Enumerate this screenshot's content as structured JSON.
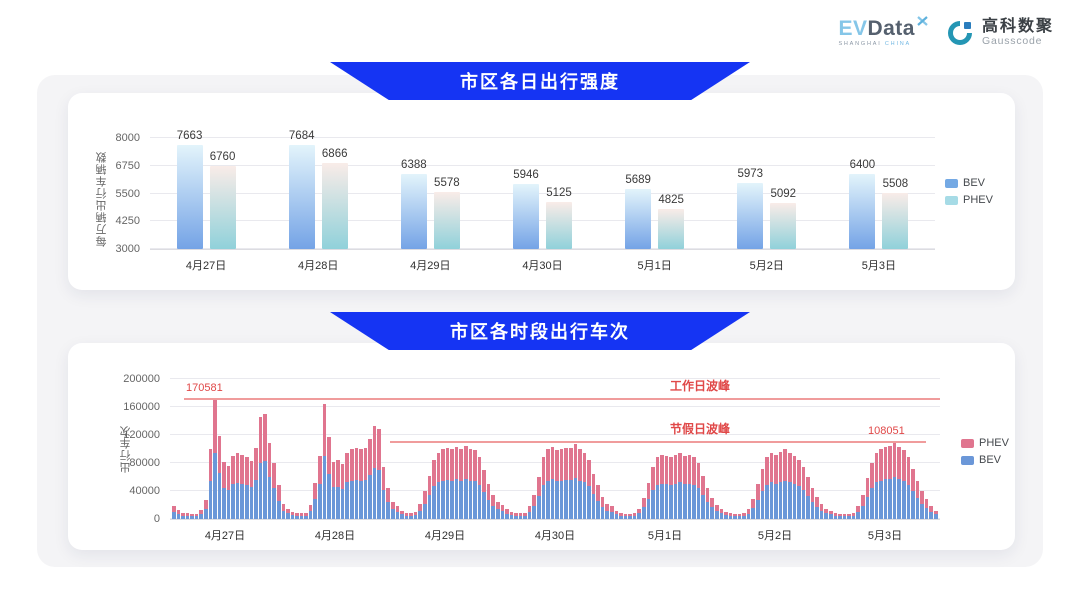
{
  "brand": {
    "evdata": {
      "ev": "EV",
      "data": "Data",
      "sub1": "SHANGHAI",
      "sub2": "CHINA"
    },
    "gausscode": {
      "cn": "高科数聚",
      "en": "Gausscode"
    }
  },
  "colors": {
    "banner_blue": "#1534f3",
    "annotation_red": "#e04848",
    "annotation_line": "#f09c9c",
    "grid": "#e9e9ee"
  },
  "chart_data": [
    {
      "type": "bar",
      "title": "市区各日出行强度",
      "ylabel": "每万辆出行车辆数",
      "categories": [
        "4月27日",
        "4月28日",
        "4月29日",
        "4月30日",
        "5月1日",
        "5月2日",
        "5月3日"
      ],
      "yticks": [
        3000,
        4250,
        5500,
        6750,
        8000
      ],
      "ylim": [
        3000,
        8000
      ],
      "grid": true,
      "legend_position": "right",
      "series": [
        {
          "name": "BEV",
          "legend_color": "#74a9e4",
          "gradient": [
            "#e3f4fb",
            "#74a3e6"
          ],
          "values": [
            7663,
            7684,
            6388,
            5946,
            5689,
            5973,
            6400
          ]
        },
        {
          "name": "PHEV",
          "legend_color": "#a6dbe6",
          "gradient": [
            "#f9ece8",
            "#90d1da"
          ],
          "values": [
            6760,
            6866,
            5578,
            5125,
            4825,
            5092,
            5508
          ]
        }
      ]
    },
    {
      "type": "bar",
      "stacked": true,
      "title": "市区各时段出行车次",
      "ylabel": "出行车次",
      "categories": [
        "4月27日",
        "4月28日",
        "4月29日",
        "4月30日",
        "5月1日",
        "5月2日",
        "5月3日"
      ],
      "bars_per_day": 24,
      "yticks": [
        0,
        40000,
        80000,
        120000,
        160000,
        200000
      ],
      "ylim": [
        0,
        200000
      ],
      "grid": true,
      "legend_position": "right",
      "legend_order": [
        "PHEV",
        "BEV"
      ],
      "series": [
        {
          "name": "BEV",
          "color": "#6b97d8",
          "values_by_day": [
            [
              9900,
              7200,
              5000,
              4400,
              4100,
              3900,
              7200,
              14900,
              55000,
              93800,
              65500,
              44600,
              41800,
              49500,
              51700,
              50600,
              48400,
              45700,
              55600,
              80300,
              82500,
              59400,
              44000,
              26400
            ],
            [
              12100,
              8300,
              5500,
              4400,
              4400,
              5000,
              11000,
              28600,
              49500,
              90200,
              64400,
              45100,
              46200,
              42900,
              52300,
              55000,
              55600,
              55000,
              56100,
              63300,
              73200,
              70400,
              41300,
              24800
            ],
            [
              13800,
              9900,
              6600,
              5000,
              4400,
              5500,
              12100,
              22000,
              34100,
              46800,
              52300,
              55000,
              56100,
              55000,
              56700,
              55000,
              57800,
              55000,
              53900,
              48400,
              38500,
              27500,
              19300,
              13800
            ],
            [
              11000,
              7700,
              5500,
              4400,
              4400,
              5000,
              9900,
              19300,
              33000,
              48400,
              55000,
              56700,
              53900,
              55000,
              56100,
              55600,
              58900,
              55000,
              52300,
              46800,
              35800,
              26400,
              17600,
              12100
            ],
            [
              9900,
              6600,
              5000,
              4100,
              3900,
              4400,
              8300,
              16500,
              28600,
              41300,
              48400,
              50600,
              49500,
              48400,
              50600,
              52300,
              49500,
              50600,
              48400,
              44000,
              34100,
              24800,
              16500,
              11000
            ],
            [
              8300,
              5500,
              4400,
              3900,
              3900,
              4400,
              7700,
              15400,
              27500,
              39600,
              48400,
              52300,
              50600,
              52800,
              55000,
              52300,
              49500,
              46800,
              41300,
              33000,
              24800,
              17600,
              12100,
              8300
            ],
            [
              6600,
              5000,
              4100,
              3900,
              3900,
              5000,
              9900,
              19300,
              31900,
              44000,
              52300,
              55000,
              56700,
              57800,
              59400,
              56700,
              53900,
              48400,
              39600,
              30300,
              22000,
              15400,
              9900,
              6600
            ]
          ]
        },
        {
          "name": "PHEV",
          "color": "#e0758f",
          "values_by_day": [
            [
              8100,
              5800,
              4000,
              3600,
              3400,
              3100,
              5800,
              12100,
              45000,
              76781,
              53500,
              36400,
              34200,
              40500,
              42300,
              41400,
              39600,
              37300,
              45400,
              65700,
              67500,
              48600,
              36000,
              21600
            ],
            [
              9900,
              6700,
              4500,
              3600,
              3600,
              4000,
              9000,
              23400,
              40500,
              73800,
              52600,
              36900,
              37800,
              35100,
              42700,
              45000,
              45400,
              45000,
              45900,
              51700,
              59800,
              57600,
              33700,
              20200
            ],
            [
              11200,
              8100,
              5400,
              4000,
              3600,
              4500,
              9900,
              18000,
              27900,
              38200,
              42700,
              45000,
              45900,
              45000,
              46300,
              45000,
              47200,
              45000,
              44100,
              39600,
              31500,
              22500,
              15700,
              11200
            ],
            [
              9000,
              6300,
              4500,
              3600,
              3600,
              4000,
              8100,
              15700,
              27000,
              39600,
              45000,
              46300,
              44100,
              45000,
              45900,
              45400,
              48100,
              45000,
              42700,
              38200,
              29200,
              21600,
              14400,
              9900
            ],
            [
              8100,
              5400,
              4000,
              3400,
              3100,
              3600,
              6700,
              13500,
              23400,
              33700,
              39600,
              41400,
              40500,
              39600,
              41400,
              42700,
              40500,
              41400,
              39600,
              36000,
              27900,
              20200,
              13500,
              9000
            ],
            [
              6700,
              4500,
              3600,
              3100,
              3100,
              3600,
              6300,
              12600,
              22500,
              32400,
              39600,
              42700,
              41400,
              43200,
              45000,
              42700,
              40500,
              38200,
              33700,
              27000,
              20200,
              14400,
              9900,
              6700
            ],
            [
              5400,
              4000,
              3400,
              3100,
              3100,
              4000,
              8100,
              15700,
              26100,
              36000,
              42700,
              45000,
              46300,
              47200,
              48651,
              46300,
              44100,
              39600,
              32400,
              24700,
              18000,
              12600,
              8100,
              5400
            ]
          ]
        }
      ],
      "annotations": {
        "workday_peak": {
          "label": "工作日波峰",
          "value": 170581,
          "value_label": "170581"
        },
        "holiday_peak": {
          "label": "节假日波峰",
          "value": 108051,
          "value_label": "108051"
        }
      }
    }
  ]
}
